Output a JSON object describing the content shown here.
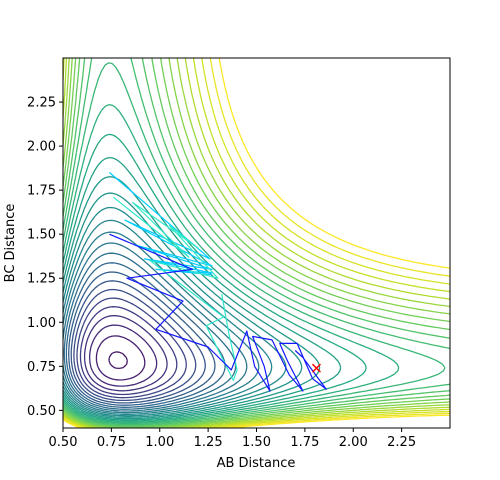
{
  "chart_data": {
    "type": "contour",
    "title": "",
    "xlabel": "AB Distance",
    "ylabel": "BC Distance",
    "xlim": [
      0.5,
      2.5
    ],
    "ylim": [
      0.4,
      2.5
    ],
    "xticks": [
      "0.50",
      "0.75",
      "1.00",
      "1.25",
      "1.50",
      "1.75",
      "2.00",
      "2.25"
    ],
    "yticks": [
      "0.50",
      "0.75",
      "1.00",
      "1.25",
      "1.50",
      "1.75",
      "2.00",
      "2.25"
    ],
    "xtick_values": [
      0.5,
      0.75,
      1.0,
      1.25,
      1.5,
      1.75,
      2.0,
      2.25
    ],
    "ytick_values": [
      0.5,
      0.75,
      1.0,
      1.25,
      1.5,
      1.75,
      2.0,
      2.25
    ],
    "colormap": "viridis",
    "contour_level_count": 34,
    "trajectories": [
      {
        "color": "#00ccff",
        "points": [
          [
            0.74,
            1.85
          ],
          [
            1.26,
            1.36
          ],
          [
            0.82,
            1.58
          ],
          [
            1.27,
            1.32
          ],
          [
            0.87,
            1.44
          ],
          [
            1.27,
            1.3
          ],
          [
            0.92,
            1.36
          ],
          [
            1.27,
            1.28
          ],
          [
            0.98,
            1.3
          ],
          [
            1.27,
            1.27
          ]
        ]
      },
      {
        "color": "#2ee8c8",
        "points": [
          [
            0.76,
            1.71
          ],
          [
            1.15,
            1.37
          ],
          [
            0.86,
            1.68
          ],
          [
            1.2,
            1.42
          ],
          [
            1.05,
            1.55
          ],
          [
            1.3,
            1.25
          ],
          [
            0.95,
            1.35
          ],
          [
            1.33,
            1.03
          ],
          [
            1.24,
            0.98
          ],
          [
            1.38,
            0.67
          ],
          [
            1.4,
            0.73
          ],
          [
            1.36,
            0.92
          ],
          [
            1.32,
            1.16
          ]
        ]
      },
      {
        "color": "#1418ff",
        "points": [
          [
            0.74,
            1.5
          ],
          [
            1.17,
            1.3
          ],
          [
            0.83,
            1.25
          ],
          [
            1.12,
            1.12
          ],
          [
            0.98,
            0.96
          ],
          [
            1.25,
            0.86
          ],
          [
            1.37,
            0.73
          ],
          [
            1.45,
            0.95
          ],
          [
            1.49,
            0.75
          ],
          [
            1.57,
            0.61
          ],
          [
            1.54,
            0.75
          ],
          [
            1.48,
            0.92
          ],
          [
            1.58,
            0.9
          ],
          [
            1.67,
            0.7
          ],
          [
            1.74,
            0.61
          ],
          [
            1.66,
            0.78
          ],
          [
            1.62,
            0.88
          ],
          [
            1.71,
            0.88
          ],
          [
            1.79,
            0.68
          ],
          [
            1.86,
            0.62
          ],
          [
            1.74,
            0.8
          ],
          [
            1.7,
            0.84
          ]
        ]
      }
    ],
    "marker": {
      "x": 1.81,
      "y": 0.74,
      "symbol": "x",
      "color": "#ff0000"
    }
  }
}
